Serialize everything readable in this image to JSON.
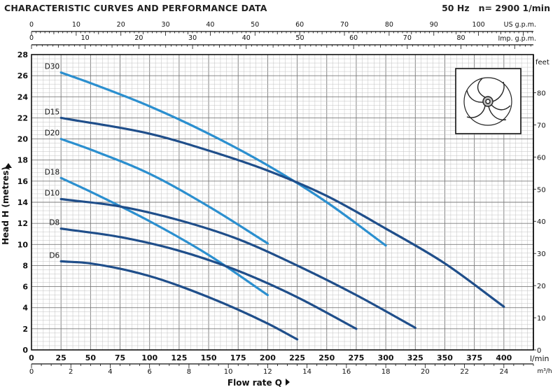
{
  "header": {
    "title": "CHARACTERISTIC CURVES AND PERFORMANCE DATA",
    "frequency": "50 Hz",
    "speed": "n= 2900  1/min"
  },
  "colors": {
    "dark_series": "#1f4e8a",
    "light_series": "#2b8fcf",
    "grid": "#8a8a8a",
    "axis": "#111111",
    "background": "#ffffff"
  },
  "impeller_icon": "impeller-icon",
  "chart_data": {
    "type": "line",
    "title": "",
    "xlabel": "Flow rate Q",
    "x_unit_primary": "l/min",
    "x_unit_m3h": "m³/h",
    "x_unit_us": "US g.p.m.",
    "x_unit_imp": "Imp. g.p.m.",
    "ylabel": "Head H (metres)",
    "y_unit_right": "feet",
    "xlim": [
      0,
      425
    ],
    "ylim": [
      0,
      28
    ],
    "y_right_lim": [
      0,
      91.86
    ],
    "grid": true,
    "x_ticks_lmin": [
      0,
      25,
      50,
      75,
      100,
      125,
      150,
      175,
      200,
      225,
      250,
      275,
      300,
      325,
      350,
      375,
      400
    ],
    "x_ticks_m3h": [
      0,
      2,
      4,
      6,
      8,
      10,
      12,
      14,
      16,
      18,
      20,
      22,
      24
    ],
    "x_ticks_us": [
      0,
      10,
      20,
      30,
      40,
      50,
      60,
      70,
      80,
      90,
      100
    ],
    "x_ticks_imp": [
      0,
      10,
      20,
      30,
      40,
      50,
      60,
      70,
      80
    ],
    "y_ticks": [
      0,
      2,
      4,
      6,
      8,
      10,
      12,
      14,
      16,
      18,
      20,
      22,
      24,
      26,
      28
    ],
    "y_ticks_feet": [
      0,
      10,
      20,
      30,
      40,
      50,
      60,
      70,
      80
    ],
    "series": [
      {
        "name": "D30",
        "shade": "light",
        "x": [
          25,
          50,
          100,
          150,
          200,
          250,
          300
        ],
        "y": [
          26.3,
          25.3,
          23.1,
          20.5,
          17.5,
          14.0,
          9.9
        ]
      },
      {
        "name": "D15",
        "shade": "dark",
        "x": [
          25,
          100,
          150,
          200,
          250,
          300,
          350,
          400
        ],
        "y": [
          22.0,
          20.5,
          18.9,
          17.0,
          14.6,
          11.5,
          8.2,
          4.1
        ]
      },
      {
        "name": "D20",
        "shade": "light",
        "x": [
          25,
          50,
          100,
          150,
          200
        ],
        "y": [
          20.0,
          19.0,
          16.7,
          13.6,
          10.1
        ]
      },
      {
        "name": "D18",
        "shade": "light",
        "x": [
          25,
          50,
          100,
          150,
          200
        ],
        "y": [
          16.3,
          15.0,
          12.2,
          9.0,
          5.2
        ]
      },
      {
        "name": "D10",
        "shade": "dark",
        "x": [
          25,
          75,
          125,
          175,
          225,
          275,
          325
        ],
        "y": [
          14.3,
          13.6,
          12.3,
          10.5,
          8.0,
          5.2,
          2.1
        ]
      },
      {
        "name": "D8",
        "shade": "dark",
        "x": [
          25,
          75,
          125,
          175,
          225,
          275
        ],
        "y": [
          11.5,
          10.7,
          9.4,
          7.5,
          5.0,
          2.0
        ]
      },
      {
        "name": "D6",
        "shade": "dark",
        "x": [
          25,
          50,
          100,
          150,
          200,
          225
        ],
        "y": [
          8.4,
          8.2,
          7.0,
          5.0,
          2.5,
          1.0
        ]
      }
    ]
  }
}
